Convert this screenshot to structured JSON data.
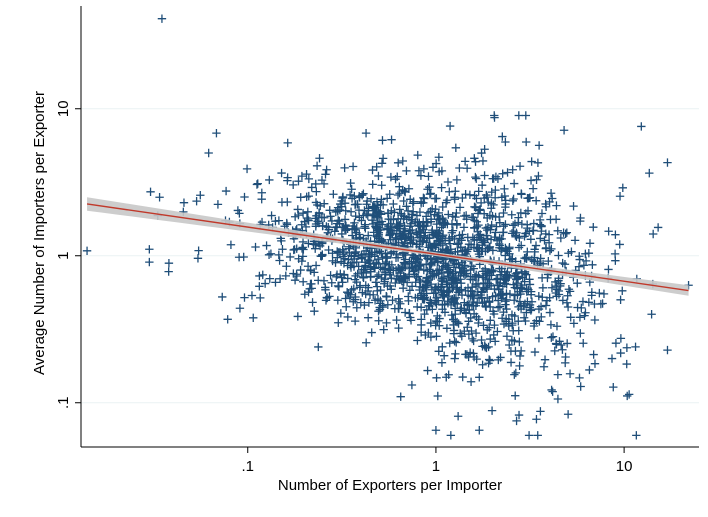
{
  "chart_data": {
    "type": "scatter",
    "xlabel": "Number of Exporters per Importer",
    "ylabel": "Average Number of Importers per Exporter",
    "x_scale": "log",
    "y_scale": "log",
    "xlim": [
      0.013,
      25
    ],
    "ylim": [
      0.05,
      50
    ],
    "x_ticks": [
      {
        "value": 0.1,
        "label": ".1"
      },
      {
        "value": 1,
        "label": "1"
      },
      {
        "value": 10,
        "label": "10"
      }
    ],
    "y_ticks": [
      {
        "value": 0.1,
        "label": ".1"
      },
      {
        "value": 1,
        "label": "1"
      },
      {
        "value": 10,
        "label": "10"
      }
    ],
    "grid": {
      "x": false,
      "y": true
    },
    "legend": "none",
    "marker": "plus",
    "colors": {
      "points": "#1f4e79",
      "fit_line": "#c0392b",
      "confidence_band": "#c8c8c8",
      "grid": "#eaf2f3"
    },
    "fit_line": {
      "x": [
        0.014,
        22
      ],
      "y": [
        2.25,
        0.58
      ]
    },
    "notable_points": [
      {
        "x": 0.035,
        "y": 41
      },
      {
        "x": 0.014,
        "y": 1.08
      },
      {
        "x": 22,
        "y": 0.63
      },
      {
        "x": 0.062,
        "y": 5.0
      },
      {
        "x": 0.52,
        "y": 6.1
      },
      {
        "x": 1.6,
        "y": 4.6
      },
      {
        "x": 0.65,
        "y": 0.11
      },
      {
        "x": 1.0,
        "y": 0.065
      },
      {
        "x": 1.2,
        "y": 0.06
      },
      {
        "x": 1.7,
        "y": 0.065
      },
      {
        "x": 0.034,
        "y": 2.5
      },
      {
        "x": 0.038,
        "y": 0.78
      },
      {
        "x": 14,
        "y": 0.4
      },
      {
        "x": 11.5,
        "y": 0.24
      }
    ],
    "cloud": {
      "n": 1750,
      "x_center": 1.05,
      "x_spread_log10": 0.42,
      "y_center": 0.98,
      "y_spread_log10": 0.24
    }
  }
}
